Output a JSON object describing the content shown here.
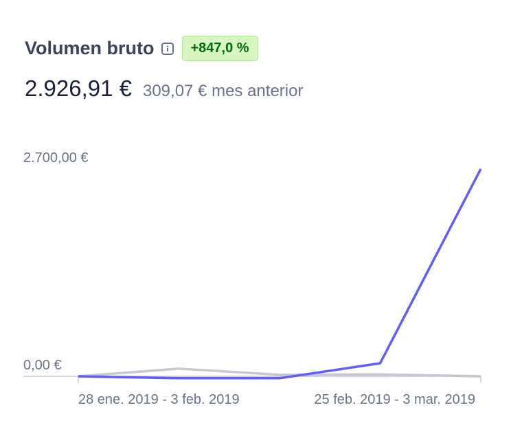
{
  "chart_data": {
    "type": "line",
    "title": "Volumen bruto",
    "change": "+847,0 %",
    "total": "2.926,91 €",
    "previous": "309,07 € mes anterior",
    "categories": [
      "28 ene. 2019 - 3 feb. 2019",
      null,
      null,
      null,
      "25 feb. 2019 - 3 mar. 2019"
    ],
    "series": [
      {
        "color": "#c4c9d1",
        "values": [
          0,
          100,
          20,
          25,
          0
        ]
      },
      {
        "color": "#635bff",
        "values": [
          0,
          -25,
          -25,
          170,
          2700
        ]
      }
    ],
    "ylim": [
      0,
      2700
    ],
    "yticks": [
      {
        "value": 0,
        "label": "0,00 €"
      },
      {
        "value": 2700,
        "label": "2.700,00 €"
      }
    ]
  }
}
